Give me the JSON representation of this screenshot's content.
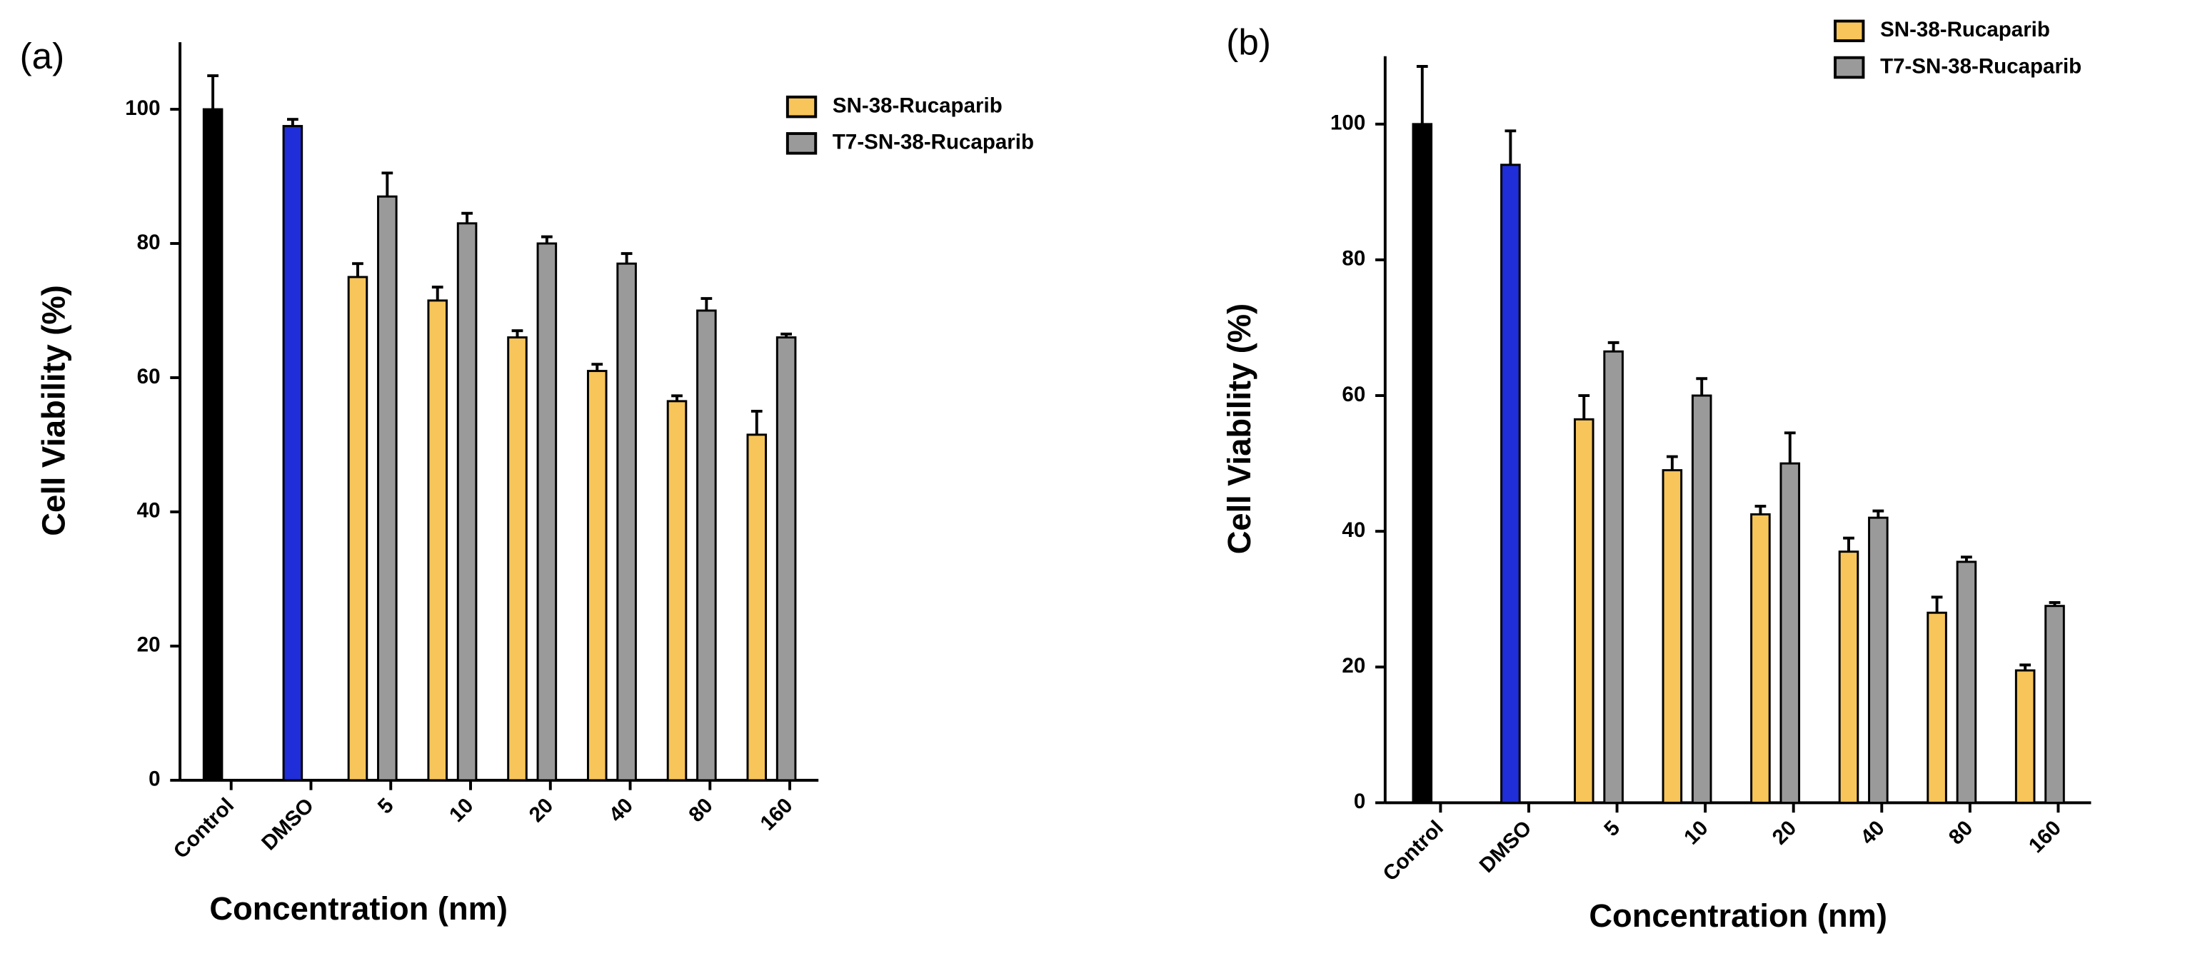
{
  "chart_data": [
    {
      "type": "bar",
      "panel_label": "(a)",
      "x_label": "Concentration (nm)",
      "y_label": "Cell Viability (%)",
      "categories": [
        "Control",
        "DMSO",
        "5",
        "10",
        "20",
        "40",
        "80",
        "160"
      ],
      "series": [
        {
          "name": "SN-38-Rucaparib",
          "color": "#f7c55a",
          "point_colors": [
            "#000000",
            "#1f2ed8",
            "#f7c55a",
            "#f7c55a",
            "#f7c55a",
            "#f7c55a",
            "#f7c55a",
            "#f7c55a"
          ],
          "values": [
            100,
            97.5,
            75,
            71.5,
            66,
            61,
            56.5,
            51.5
          ],
          "errors": [
            5,
            1,
            2,
            2,
            1,
            1,
            0.8,
            3.5
          ]
        },
        {
          "name": "T7-SN-38-Rucaparib",
          "color": "#9a9a9a",
          "values": [
            null,
            null,
            87,
            83,
            80,
            77,
            70,
            66
          ],
          "errors": [
            null,
            null,
            3.5,
            1.5,
            1,
            1.5,
            1.8,
            0.5
          ]
        }
      ],
      "ylim": [
        0,
        110
      ],
      "yticks": [
        0,
        20,
        40,
        60,
        80,
        100
      ],
      "legend": "upper right"
    },
    {
      "type": "bar",
      "panel_label": "(b)",
      "x_label": "Concentration (nm)",
      "y_label": "Cell Viability (%)",
      "categories": [
        "Control",
        "DMSO",
        "5",
        "10",
        "20",
        "40",
        "80",
        "160"
      ],
      "series": [
        {
          "name": "SN-38-Rucaparib",
          "color": "#f7c55a",
          "point_colors": [
            "#000000",
            "#1f2ed8",
            "#f7c55a",
            "#f7c55a",
            "#f7c55a",
            "#f7c55a",
            "#f7c55a",
            "#f7c55a"
          ],
          "values": [
            100,
            94,
            56.5,
            49,
            42.5,
            37,
            28,
            19.5
          ],
          "errors": [
            8.5,
            5,
            3.5,
            2,
            1.2,
            2,
            2.3,
            0.8
          ]
        },
        {
          "name": "T7-SN-38-Rucaparib",
          "color": "#9a9a9a",
          "values": [
            null,
            null,
            66.5,
            60,
            50,
            42,
            35.5,
            29
          ],
          "errors": [
            null,
            null,
            1.3,
            2.5,
            4.5,
            1,
            0.7,
            0.5
          ]
        }
      ],
      "ylim": [
        0,
        110
      ],
      "yticks": [
        0,
        20,
        40,
        60,
        80,
        100
      ],
      "legend": "upper right"
    }
  ]
}
